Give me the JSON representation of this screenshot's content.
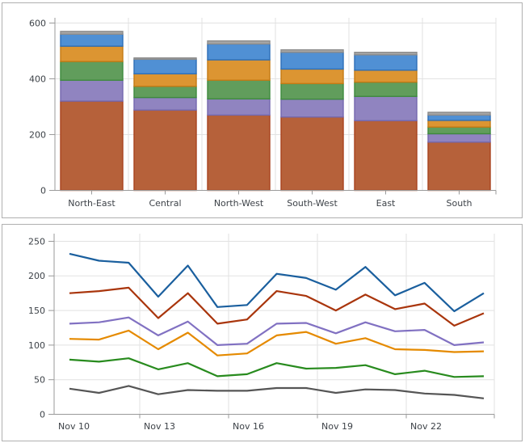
{
  "theme": {
    "background": "#ffffff",
    "panel_border": "#b0b0b0",
    "grid_color": "#e2e2e2",
    "axis_color": "#9a9a9a",
    "label_color": "#3d4248",
    "label_font_size": 11
  },
  "chart_data": [
    {
      "id": "region-stacked-bar",
      "type": "bar",
      "stacked": true,
      "title": "",
      "xlabel": "",
      "ylabel": "",
      "categories": [
        "North-East",
        "Central",
        "North-West",
        "South-West",
        "East",
        "South"
      ],
      "series": [
        {
          "name": "sienna",
          "fill": "#b6613a",
          "stroke": "#a8431f",
          "values": [
            320,
            288,
            270,
            263,
            250,
            173
          ]
        },
        {
          "name": "purple",
          "fill": "#9084c0",
          "stroke": "#7468ae",
          "values": [
            75,
            45,
            58,
            64,
            87,
            30
          ]
        },
        {
          "name": "green",
          "fill": "#619d5c",
          "stroke": "#3e8a3e",
          "values": [
            67,
            40,
            67,
            56,
            51,
            24
          ]
        },
        {
          "name": "orange",
          "fill": "#dc9532",
          "stroke": "#c47a14",
          "values": [
            55,
            45,
            73,
            52,
            43,
            24
          ]
        },
        {
          "name": "blue",
          "fill": "#5090d4",
          "stroke": "#2d6fb7",
          "values": [
            43,
            52,
            57,
            60,
            55,
            19
          ]
        },
        {
          "name": "gray",
          "fill": "#a6a6a6",
          "stroke": "#8c8c8c",
          "values": [
            10,
            5,
            11,
            9,
            9,
            10
          ]
        }
      ],
      "totals": [
        570,
        475,
        536,
        504,
        495,
        280
      ],
      "y_ticks": [
        0,
        200,
        400,
        600
      ],
      "ylim": [
        0,
        620
      ],
      "grid": true,
      "legend": "none"
    },
    {
      "id": "daily-lines",
      "type": "line",
      "title": "",
      "xlabel": "",
      "ylabel": "",
      "x": [
        "Nov 10",
        "Nov 11",
        "Nov 12",
        "Nov 13",
        "Nov 14",
        "Nov 15",
        "Nov 16",
        "Nov 17",
        "Nov 18",
        "Nov 19",
        "Nov 20",
        "Nov 21",
        "Nov 22",
        "Nov 23",
        "Nov 24"
      ],
      "x_tick_labels": [
        "Nov 10",
        "Nov 13",
        "Nov 16",
        "Nov 19",
        "Nov 22"
      ],
      "series": [
        {
          "name": "blue",
          "color": "#1a5f9e",
          "values": [
            232,
            222,
            219,
            170,
            215,
            155,
            158,
            203,
            197,
            180,
            213,
            172,
            190,
            149,
            175
          ]
        },
        {
          "name": "red",
          "color": "#a9350c",
          "values": [
            175,
            178,
            183,
            139,
            175,
            131,
            137,
            178,
            171,
            150,
            173,
            152,
            160,
            128,
            146
          ]
        },
        {
          "name": "purple",
          "color": "#8171c2",
          "values": [
            131,
            133,
            140,
            114,
            134,
            100,
            102,
            131,
            132,
            117,
            133,
            120,
            122,
            100,
            104
          ]
        },
        {
          "name": "orange",
          "color": "#e58a00",
          "values": [
            109,
            108,
            121,
            94,
            118,
            85,
            88,
            114,
            119,
            102,
            110,
            94,
            93,
            90,
            91
          ]
        },
        {
          "name": "green",
          "color": "#288b1e",
          "values": [
            79,
            76,
            81,
            65,
            74,
            55,
            58,
            74,
            66,
            67,
            71,
            58,
            63,
            54,
            55
          ]
        },
        {
          "name": "gray",
          "color": "#555555",
          "values": [
            37,
            31,
            41,
            29,
            35,
            34,
            34,
            38,
            38,
            31,
            36,
            35,
            30,
            28,
            23
          ]
        }
      ],
      "y_ticks": [
        0,
        50,
        100,
        150,
        200,
        250
      ],
      "ylim": [
        0,
        260
      ],
      "grid": true,
      "legend": "none"
    }
  ]
}
